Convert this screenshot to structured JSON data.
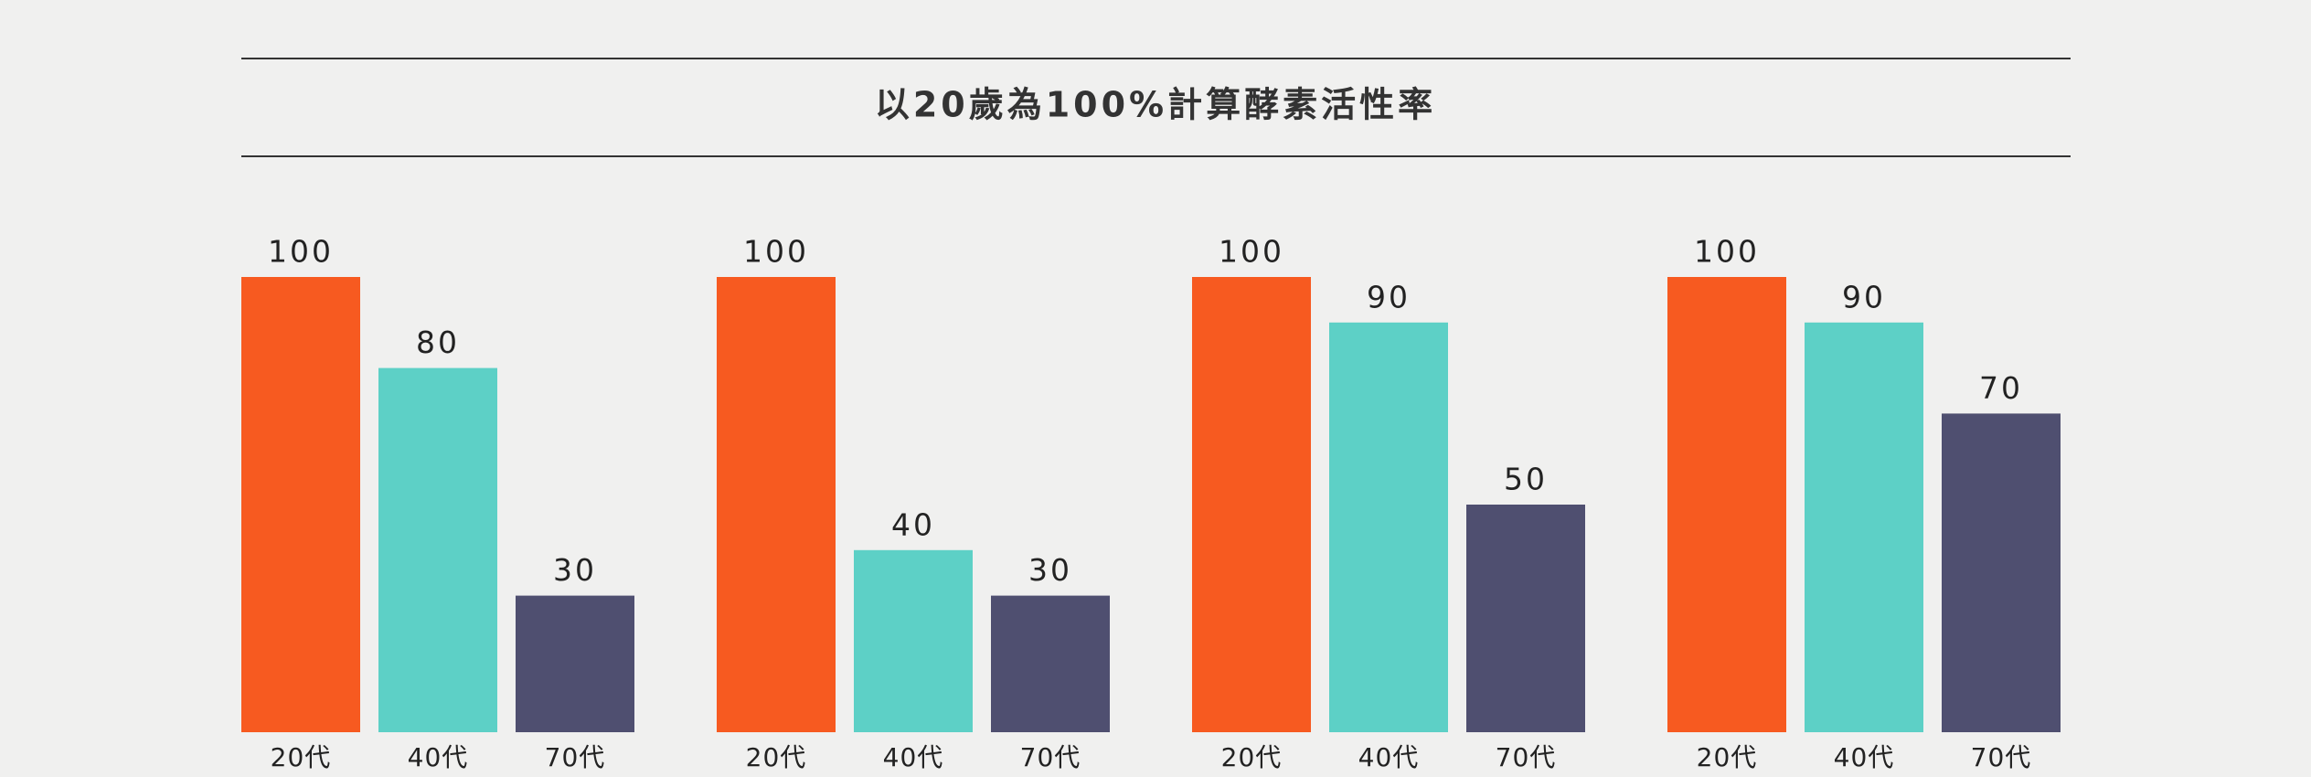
{
  "header": {
    "title": "以20歲為100%計算酵素活性率"
  },
  "chart_data": [
    {
      "type": "bar",
      "categories": [
        "20代",
        "40代",
        "70代"
      ],
      "values": [
        100,
        80,
        30
      ],
      "colors": [
        "#f75a20",
        "#5dd0c6",
        "#4f4f70"
      ],
      "ylim": [
        0,
        100
      ]
    },
    {
      "type": "bar",
      "categories": [
        "20代",
        "40代",
        "70代"
      ],
      "values": [
        100,
        40,
        30
      ],
      "colors": [
        "#f75a20",
        "#5dd0c6",
        "#4f4f70"
      ],
      "ylim": [
        0,
        100
      ]
    },
    {
      "type": "bar",
      "categories": [
        "20代",
        "40代",
        "70代"
      ],
      "values": [
        100,
        90,
        50
      ],
      "colors": [
        "#f75a20",
        "#5dd0c6",
        "#4f4f70"
      ],
      "ylim": [
        0,
        100
      ]
    },
    {
      "type": "bar",
      "categories": [
        "20代",
        "40代",
        "70代"
      ],
      "values": [
        100,
        90,
        70
      ],
      "colors": [
        "#f75a20",
        "#5dd0c6",
        "#4f4f70"
      ],
      "ylim": [
        0,
        100
      ]
    }
  ]
}
